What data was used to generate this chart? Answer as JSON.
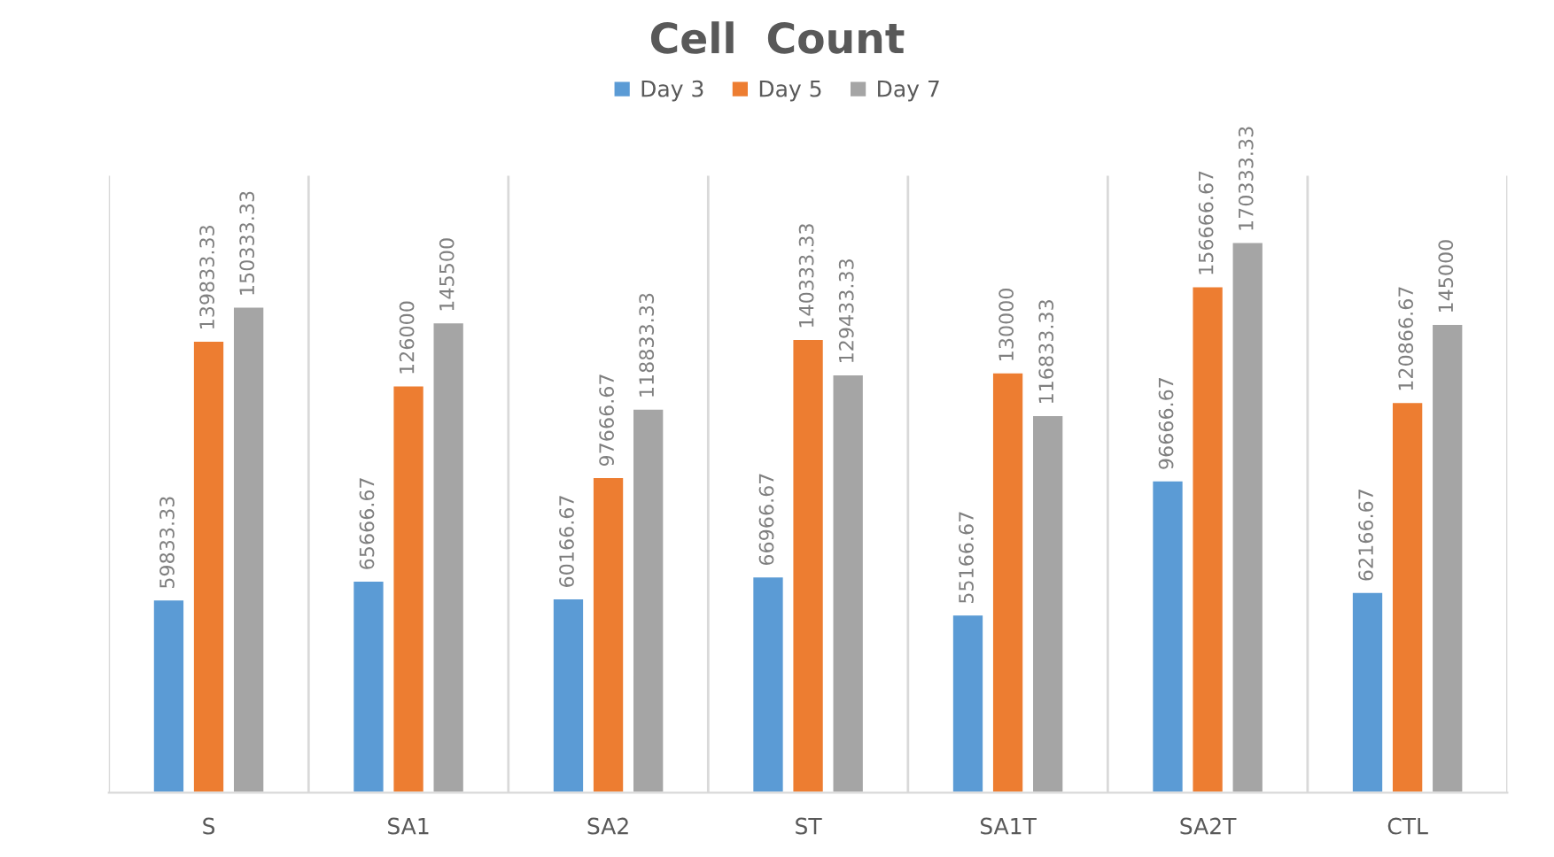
{
  "chart_data": {
    "type": "bar",
    "title": "Cell  Count",
    "categories": [
      "S",
      "SA1",
      "SA2",
      "ST",
      "SA1T",
      "SA2T",
      "CTL"
    ],
    "series": [
      {
        "name": "Day 3",
        "color": "#5b9bd5",
        "values": [
          59833.33,
          65666.67,
          60166.67,
          66966.67,
          55166.67,
          96666.67,
          62166.67
        ]
      },
      {
        "name": "Day 5",
        "color": "#ed7d31",
        "values": [
          139833.33,
          126000,
          97666.67,
          140333.33,
          130000,
          156666.67,
          120866.67
        ]
      },
      {
        "name": "Day 7",
        "color": "#a5a5a5",
        "values": [
          150333.33,
          145500,
          118833.33,
          129433.33,
          116833.33,
          170333.33,
          145000
        ]
      }
    ],
    "data_labels": true,
    "grid": "x",
    "legend": "top",
    "tick_labels": "x"
  }
}
